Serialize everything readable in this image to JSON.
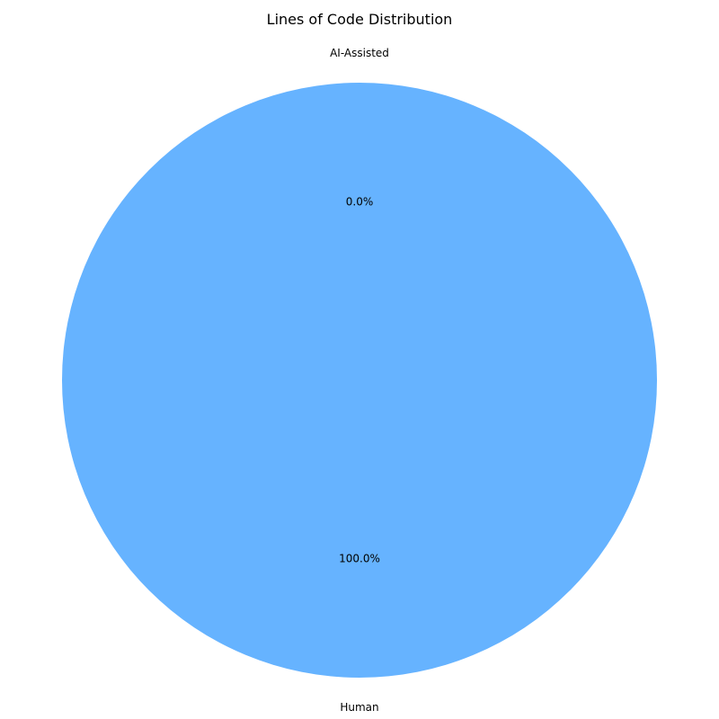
{
  "chart_data": {
    "type": "pie",
    "title": "Lines of Code Distribution",
    "start_angle_deg": 90,
    "direction": "counterclockwise",
    "slices": [
      {
        "label": "AI-Assisted",
        "value": 0.0,
        "pct_label": "0.0%",
        "color": "#ff9999"
      },
      {
        "label": "Human",
        "value": 100.0,
        "pct_label": "100.0%",
        "color": "#66b3ff"
      }
    ]
  }
}
